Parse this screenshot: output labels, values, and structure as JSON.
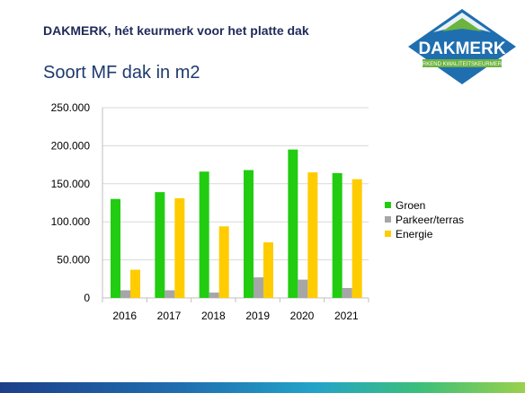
{
  "header": {
    "title": "DAKMERK, hét keurmerk voor het platte dak"
  },
  "slide": {
    "subtitle": "Soort MF dak in m2"
  },
  "logo": {
    "name": "DAKMERK",
    "tagline": "ERKEND KWALITEITSKEURMERK",
    "colors": {
      "blue": "#1f6fb0",
      "green": "#6cb33f"
    }
  },
  "chart_data": {
    "type": "bar",
    "categories": [
      "2016",
      "2017",
      "2018",
      "2019",
      "2020",
      "2021"
    ],
    "series": [
      {
        "name": "Groen",
        "color": "#22cc11",
        "values": [
          130000,
          139000,
          166000,
          168000,
          195000,
          164000
        ]
      },
      {
        "name": "Parkeer/terras",
        "color": "#a6a6a6",
        "values": [
          10000,
          10000,
          7000,
          27000,
          24000,
          13000
        ]
      },
      {
        "name": "Energie",
        "color": "#ffcc00",
        "values": [
          37000,
          131000,
          94000,
          73000,
          165000,
          156000
        ]
      }
    ],
    "yticks": [
      "0",
      "50.000",
      "100.000",
      "150.000",
      "200.000",
      "250.000"
    ],
    "ylim": [
      0,
      250000
    ],
    "grid": true,
    "legend_position": "right"
  }
}
